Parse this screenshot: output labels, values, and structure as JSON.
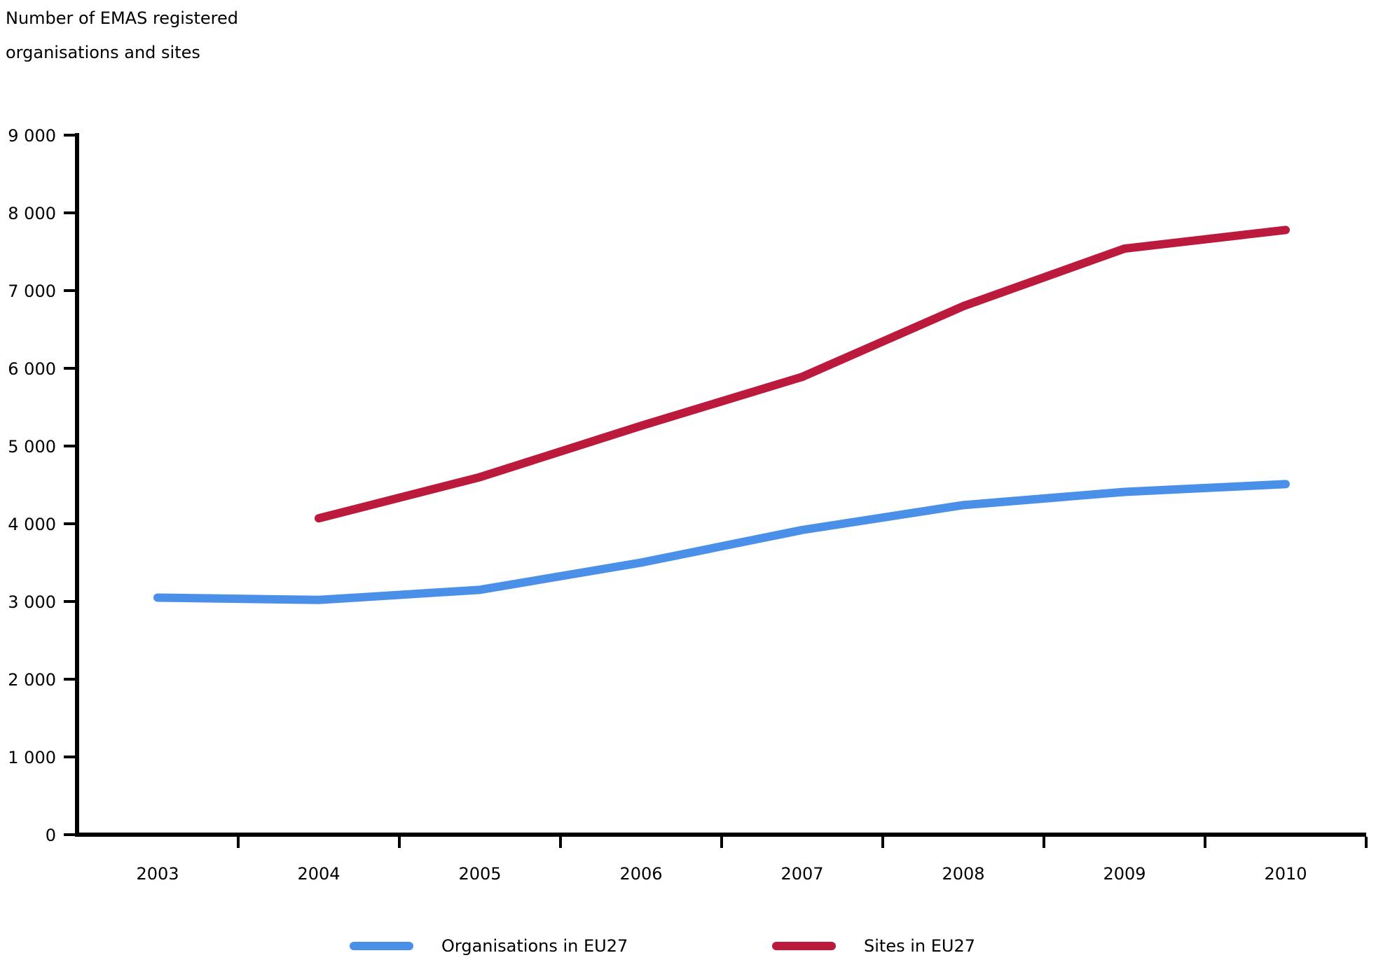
{
  "chart_data": {
    "type": "line",
    "title": "Number of EMAS registered organisations and sites",
    "title_lines": [
      "Number of EMAS registered",
      "organisations and sites"
    ],
    "categories": [
      "2003",
      "2004",
      "2005",
      "2006",
      "2007",
      "2008",
      "2009",
      "2010"
    ],
    "series": [
      {
        "name": "Organisations in EU27",
        "color": "#4b90e8",
        "values": [
          3050,
          3020,
          3150,
          3500,
          3920,
          4240,
          4410,
          4510
        ]
      },
      {
        "name": "Sites in EU27",
        "color": "#bb1a3d",
        "values": [
          null,
          4070,
          4600,
          5260,
          5890,
          6800,
          7540,
          7780
        ]
      }
    ],
    "xlabel": "",
    "ylabel": "Number of EMAS registered organisations and sites",
    "ylim": [
      0,
      9000
    ],
    "ytick_step": 1000,
    "ytick_labels": [
      "0",
      "1 000",
      "2 000",
      "3 000",
      "4 000",
      "5 000",
      "6 000",
      "7 000",
      "8 000",
      "9 000"
    ],
    "grid": false,
    "legend_position": "bottom",
    "axis_color": "#000000"
  }
}
